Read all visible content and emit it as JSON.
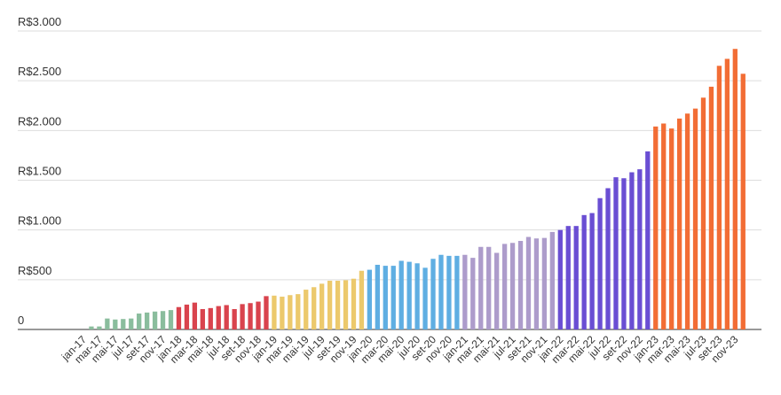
{
  "chart_data": {
    "type": "bar",
    "title": "",
    "xlabel": "",
    "ylabel": "",
    "ylim": [
      0,
      3000
    ],
    "grid": true,
    "legend": "none",
    "y_ticks": [
      0,
      500,
      1000,
      1500,
      2000,
      2500,
      3000
    ],
    "y_tick_labels": [
      "0",
      "R$500",
      "R$1.000",
      "R$1.500",
      "R$2.000",
      "R$2.500",
      "R$3.000"
    ],
    "categories": [
      "jan-17",
      "fev-17",
      "mar-17",
      "abr-17",
      "mai-17",
      "jun-17",
      "jul-17",
      "ago-17",
      "set-17",
      "out-17",
      "nov-17",
      "dez-17",
      "jan-18",
      "fev-18",
      "mar-18",
      "abr-18",
      "mai-18",
      "jun-18",
      "jul-18",
      "ago-18",
      "set-18",
      "out-18",
      "nov-18",
      "dez-18",
      "jan-19",
      "fev-19",
      "mar-19",
      "abr-19",
      "mai-19",
      "jun-19",
      "jul-19",
      "ago-19",
      "set-19",
      "out-19",
      "nov-19",
      "dez-19",
      "jan-20",
      "fev-20",
      "mar-20",
      "abr-20",
      "mai-20",
      "jun-20",
      "jul-20",
      "ago-20",
      "set-20",
      "out-20",
      "nov-20",
      "dez-20",
      "jan-21",
      "fev-21",
      "mar-21",
      "abr-21",
      "mai-21",
      "jun-21",
      "jul-21",
      "ago-21",
      "set-21",
      "out-21",
      "nov-21",
      "dez-21",
      "jan-22",
      "fev-22",
      "mar-22",
      "abr-22",
      "mai-22",
      "jun-22",
      "jul-22",
      "ago-22",
      "set-22",
      "out-22",
      "nov-22",
      "dez-22",
      "jan-23",
      "fev-23",
      "mar-23",
      "abr-23",
      "mai-23",
      "jun-23",
      "jul-23",
      "ago-23",
      "set-23",
      "out-23",
      "nov-23",
      "dez-23"
    ],
    "x_tick_labels": [
      "jan-17",
      "mar-17",
      "mai-17",
      "jul-17",
      "set-17",
      "nov-17",
      "jan-18",
      "mar-18",
      "mai-18",
      "jul-18",
      "set-18",
      "nov-18",
      "jan-19",
      "mar-19",
      "mai-19",
      "jul-19",
      "set-19",
      "nov-19",
      "jan-20",
      "mar-20",
      "mai-20",
      "jul-20",
      "set-20",
      "nov-20",
      "jan-21",
      "mar-21",
      "mai-21",
      "jul-21",
      "set-21",
      "nov-21",
      "jan-22",
      "mar-22",
      "mai-22",
      "jul-22",
      "set-22",
      "nov-22",
      "jan-23",
      "mar-23",
      "mai-23",
      "jul-23",
      "set-23",
      "nov-23"
    ],
    "values": [
      0,
      30,
      30,
      110,
      100,
      105,
      110,
      160,
      170,
      180,
      185,
      195,
      225,
      250,
      270,
      205,
      215,
      235,
      245,
      205,
      255,
      265,
      280,
      335,
      340,
      330,
      345,
      355,
      400,
      425,
      460,
      490,
      490,
      495,
      510,
      590,
      600,
      650,
      640,
      640,
      690,
      680,
      665,
      620,
      710,
      750,
      740,
      740,
      750,
      720,
      830,
      830,
      770,
      860,
      870,
      890,
      930,
      915,
      920,
      980,
      1000,
      1040,
      1040,
      1150,
      1170,
      1320,
      1420,
      1530,
      1520,
      1580,
      1610,
      1790,
      2040,
      2070,
      2020,
      2120,
      2170,
      2220,
      2330,
      2440,
      2650,
      2720,
      2820,
      2570
    ],
    "year_colors": [
      "#8abd9d",
      "#d9434d",
      "#ecc96c",
      "#5faee2",
      "#ad9ccb",
      "#6a4ed3",
      "#f26d35"
    ]
  }
}
